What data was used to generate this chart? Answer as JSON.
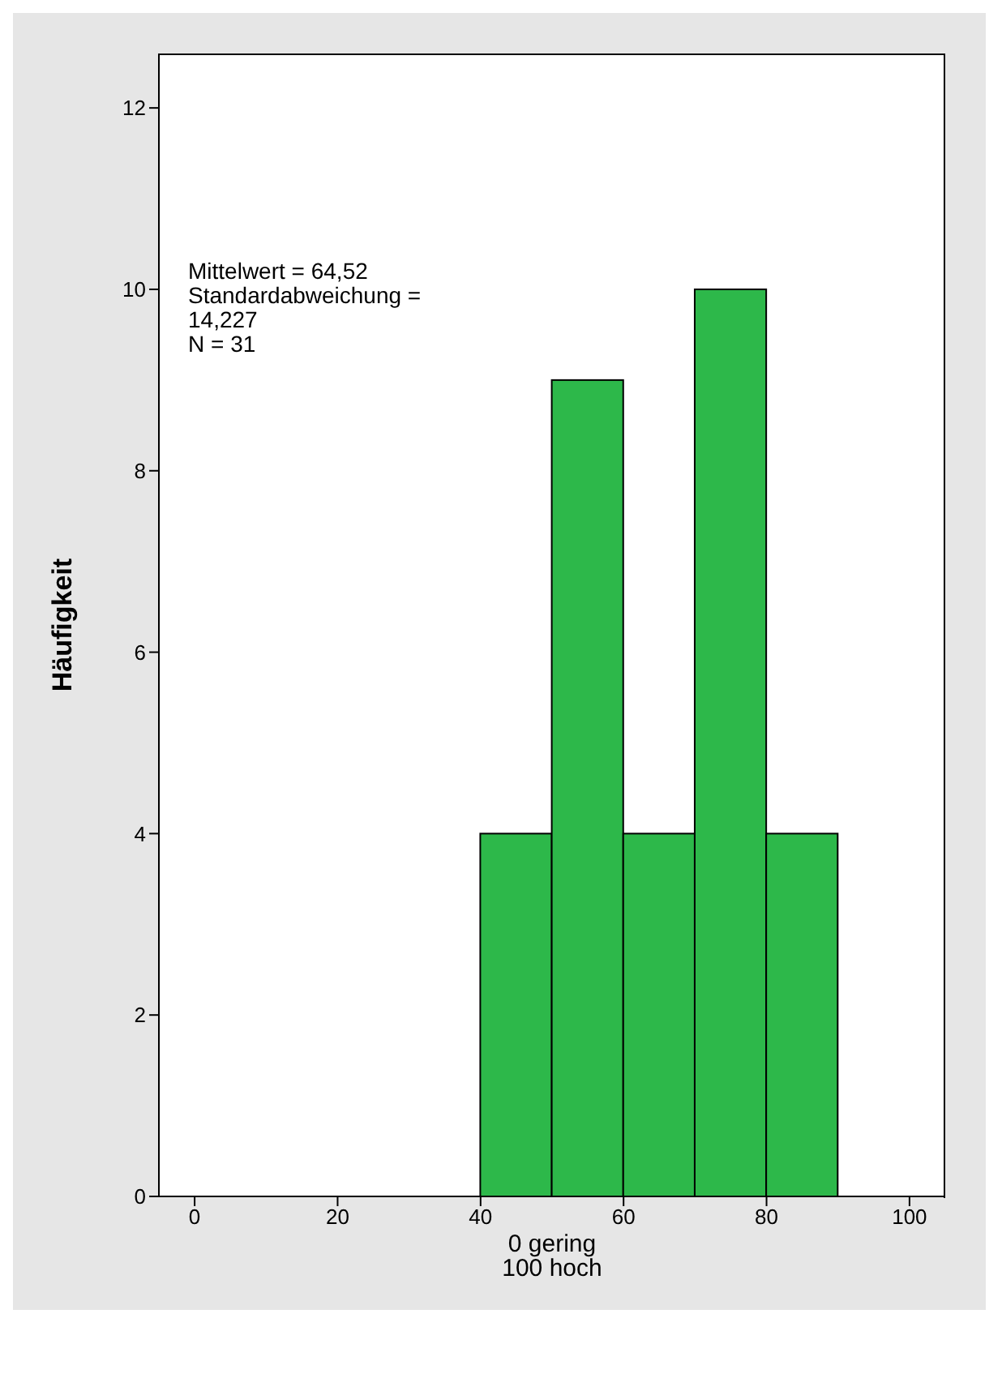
{
  "chart_data": {
    "type": "histogram",
    "ylabel": "Häufigkeit",
    "xlabel": "0 gering\n100 hoch",
    "bins": [
      40,
      50,
      60,
      70,
      80,
      90
    ],
    "values": [
      4,
      9,
      4,
      10,
      4
    ],
    "color": "#2db84a",
    "xlim": [
      -5,
      105
    ],
    "xticks": [
      0,
      20,
      40,
      60,
      80,
      100
    ],
    "ylim": [
      0,
      12.6
    ],
    "yticks": [
      0,
      2,
      4,
      6,
      8,
      10,
      12
    ],
    "annotations": [
      "Mittelwert = 64,52",
      "Standardabweichung = 14,227",
      "N = 31"
    ]
  }
}
